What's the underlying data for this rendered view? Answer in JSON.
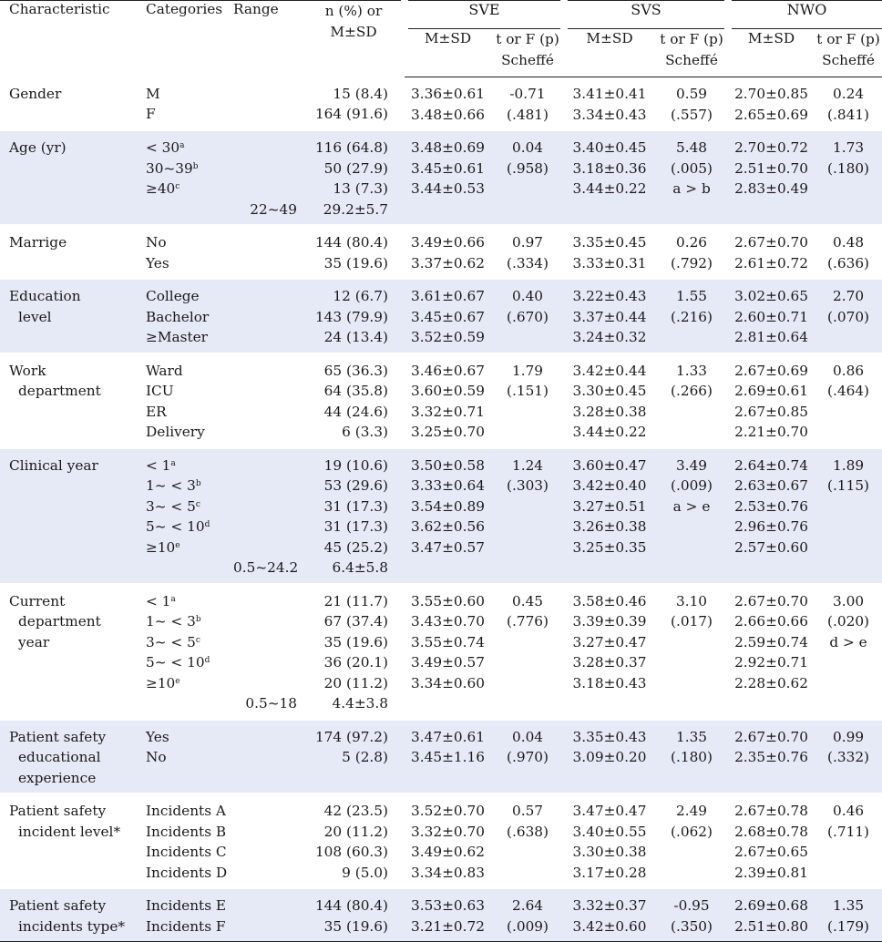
{
  "headers": {
    "characteristic": "Characteristic",
    "categories": "Categories",
    "range": "Range",
    "n_line1": "n (%) or",
    "n_line2": "M±SD",
    "groups": [
      "SVE",
      "SVS",
      "NWO"
    ],
    "ms": "M±SD",
    "t_line1": "t or F (p)",
    "t_line2": "Scheffé"
  },
  "rows": [
    {
      "characteristic": [
        "Gender"
      ],
      "categories": [
        {
          "text": "M"
        },
        {
          "text": "F"
        }
      ],
      "range": [
        "",
        ""
      ],
      "n": [
        "15 (8.4)",
        "164 (91.6)"
      ],
      "sve_ms": [
        "3.36±0.61",
        "3.48±0.66"
      ],
      "sve_t": [
        "-0.71",
        "(.481)"
      ],
      "svs_ms": [
        "3.41±0.41",
        "3.34±0.43"
      ],
      "svs_t": [
        "0.59",
        "(.557)"
      ],
      "nwo_ms": [
        "2.70±0.85",
        "2.65±0.69"
      ],
      "nwo_t": [
        "0.24",
        "(.841)"
      ]
    },
    {
      "characteristic": [
        "Age (yr)"
      ],
      "categories": [
        {
          "text": "< 30",
          "sup": "a"
        },
        {
          "text": "30~39",
          "sup": "b"
        },
        {
          "text": "≥40",
          "sup": "c"
        },
        {
          "text": ""
        }
      ],
      "range": [
        "",
        "",
        "",
        "22~49"
      ],
      "n": [
        "116 (64.8)",
        "50 (27.9)",
        "13 (7.3)",
        "29.2±5.7"
      ],
      "sve_ms": [
        "3.48±0.69",
        "3.45±0.61",
        "3.44±0.53"
      ],
      "sve_t": [
        "0.04",
        "(.958)"
      ],
      "svs_ms": [
        "3.40±0.45",
        "3.18±0.36",
        "3.44±0.22"
      ],
      "svs_t": [
        "5.48",
        "(.005)",
        "a > b"
      ],
      "nwo_ms": [
        "2.70±0.72",
        "2.51±0.70",
        "2.83±0.49"
      ],
      "nwo_t": [
        "1.73",
        "(.180)"
      ]
    },
    {
      "characteristic": [
        "Marrige"
      ],
      "categories": [
        {
          "text": "No"
        },
        {
          "text": "Yes"
        }
      ],
      "range": [
        "",
        ""
      ],
      "n": [
        "144 (80.4)",
        "35 (19.6)"
      ],
      "sve_ms": [
        "3.49±0.66",
        "3.37±0.62"
      ],
      "sve_t": [
        "0.97",
        "(.334)"
      ],
      "svs_ms": [
        "3.35±0.45",
        "3.33±0.31"
      ],
      "svs_t": [
        "0.26",
        "(.792)"
      ],
      "nwo_ms": [
        "2.67±0.70",
        "2.61±0.72"
      ],
      "nwo_t": [
        "0.48",
        "(.636)"
      ]
    },
    {
      "characteristic": [
        "Education",
        "level"
      ],
      "categories": [
        {
          "text": "College"
        },
        {
          "text": "Bachelor"
        },
        {
          "text": "≥Master"
        }
      ],
      "range": [
        "",
        "",
        ""
      ],
      "n": [
        "12 (6.7)",
        "143 (79.9)",
        "24 (13.4)"
      ],
      "sve_ms": [
        "3.61±0.67",
        "3.45±0.67",
        "3.52±0.59"
      ],
      "sve_t": [
        "0.40",
        "(.670)"
      ],
      "svs_ms": [
        "3.22±0.43",
        "3.37±0.44",
        "3.24±0.32"
      ],
      "svs_t": [
        "1.55",
        "(.216)"
      ],
      "nwo_ms": [
        "3.02±0.65",
        "2.60±0.71",
        "2.81±0.64"
      ],
      "nwo_t": [
        "2.70",
        "(.070)"
      ]
    },
    {
      "characteristic": [
        "Work",
        "department"
      ],
      "categories": [
        {
          "text": "Ward"
        },
        {
          "text": "ICU"
        },
        {
          "text": "ER"
        },
        {
          "text": "Delivery"
        }
      ],
      "range": [
        "",
        "",
        "",
        ""
      ],
      "n": [
        "65 (36.3)",
        "64 (35.8)",
        "44 (24.6)",
        "6 (3.3)"
      ],
      "sve_ms": [
        "3.46±0.67",
        "3.60±0.59",
        "3.32±0.71",
        "3.25±0.70"
      ],
      "sve_t": [
        "1.79",
        "(.151)"
      ],
      "svs_ms": [
        "3.42±0.44",
        "3.30±0.45",
        "3.28±0.38",
        "3.44±0.22"
      ],
      "svs_t": [
        "1.33",
        "(.266)"
      ],
      "nwo_ms": [
        "2.67±0.69",
        "2.69±0.61",
        "2.67±0.85",
        "2.21±0.70"
      ],
      "nwo_t": [
        "0.86",
        "(.464)"
      ]
    },
    {
      "characteristic": [
        "Clinical year"
      ],
      "categories": [
        {
          "text": "< 1",
          "sup": "a"
        },
        {
          "text": "1~ < 3",
          "sup": "b"
        },
        {
          "text": "3~ < 5",
          "sup": "c"
        },
        {
          "text": "5~ < 10",
          "sup": "d"
        },
        {
          "text": "≥10",
          "sup": "e"
        },
        {
          "text": ""
        }
      ],
      "range": [
        "",
        "",
        "",
        "",
        "",
        "0.5~24.2"
      ],
      "n": [
        "19 (10.6)",
        "53 (29.6)",
        "31 (17.3)",
        "31 (17.3)",
        "45 (25.2)",
        "6.4±5.8"
      ],
      "sve_ms": [
        "3.50±0.58",
        "3.33±0.64",
        "3.54±0.89",
        "3.62±0.56",
        "3.47±0.57"
      ],
      "sve_t": [
        "1.24",
        "(.303)"
      ],
      "svs_ms": [
        "3.60±0.47",
        "3.42±0.40",
        "3.27±0.51",
        "3.26±0.38",
        "3.25±0.35"
      ],
      "svs_t": [
        "3.49",
        "(.009)",
        "a > e"
      ],
      "nwo_ms": [
        "2.64±0.74",
        "2.63±0.67",
        "2.53±0.76",
        "2.96±0.76",
        "2.57±0.60"
      ],
      "nwo_t": [
        "1.89",
        "(.115)"
      ]
    },
    {
      "characteristic": [
        "Current",
        "department",
        "year"
      ],
      "categories": [
        {
          "text": "< 1",
          "sup": "a"
        },
        {
          "text": "1~ < 3",
          "sup": "b"
        },
        {
          "text": "3~ < 5",
          "sup": "c"
        },
        {
          "text": "5~ < 10",
          "sup": "d"
        },
        {
          "text": "≥10",
          "sup": "e"
        },
        {
          "text": ""
        }
      ],
      "range": [
        "",
        "",
        "",
        "",
        "",
        "0.5~18"
      ],
      "n": [
        "21 (11.7)",
        "67 (37.4)",
        "35 (19.6)",
        "36 (20.1)",
        "20 (11.2)",
        "4.4±3.8"
      ],
      "sve_ms": [
        "3.55±0.60",
        "3.43±0.70",
        "3.55±0.74",
        "3.49±0.57",
        "3.34±0.60"
      ],
      "sve_t": [
        "0.45",
        "(.776)"
      ],
      "svs_ms": [
        "3.58±0.46",
        "3.39±0.39",
        "3.27±0.47",
        "3.28±0.37",
        "3.18±0.43"
      ],
      "svs_t": [
        "3.10",
        "(.017)"
      ],
      "nwo_ms": [
        "2.67±0.70",
        "2.66±0.66",
        "2.59±0.74",
        "2.92±0.71",
        "2.28±0.62"
      ],
      "nwo_t": [
        "3.00",
        "(.020)",
        "d > e"
      ]
    },
    {
      "characteristic": [
        "Patient safety",
        "educational",
        "experience"
      ],
      "categories": [
        {
          "text": "Yes"
        },
        {
          "text": "No"
        }
      ],
      "range": [
        "",
        ""
      ],
      "n": [
        "174 (97.2)",
        "5 (2.8)"
      ],
      "sve_ms": [
        "3.47±0.61",
        "3.45±1.16"
      ],
      "sve_t": [
        "0.04",
        "(.970)"
      ],
      "svs_ms": [
        "3.35±0.43",
        "3.09±0.20"
      ],
      "svs_t": [
        "1.35",
        "(.180)"
      ],
      "nwo_ms": [
        "2.67±0.70",
        "2.35±0.76"
      ],
      "nwo_t": [
        "0.99",
        "(.332)"
      ]
    },
    {
      "characteristic": [
        "Patient safety",
        "incident level*"
      ],
      "categories": [
        {
          "text": "Incidents A"
        },
        {
          "text": "Incidents B"
        },
        {
          "text": "Incidents C"
        },
        {
          "text": "Incidents D"
        }
      ],
      "range": [
        "",
        "",
        "",
        ""
      ],
      "n": [
        "42 (23.5)",
        "20 (11.2)",
        "108 (60.3)",
        "9 (5.0)"
      ],
      "sve_ms": [
        "3.52±0.70",
        "3.32±0.70",
        "3.49±0.62",
        "3.34±0.83"
      ],
      "sve_t": [
        "0.57",
        "(.638)"
      ],
      "svs_ms": [
        "3.47±0.47",
        "3.40±0.55",
        "3.30±0.38",
        "3.17±0.28"
      ],
      "svs_t": [
        "2.49",
        "(.062)"
      ],
      "nwo_ms": [
        "2.67±0.78",
        "2.68±0.78",
        "2.67±0.65",
        "2.39±0.81"
      ],
      "nwo_t": [
        "0.46",
        "(.711)"
      ]
    },
    {
      "characteristic": [
        "Patient safety",
        "incidents type*"
      ],
      "categories": [
        {
          "text": "Incidents E"
        },
        {
          "text": "Incidents F"
        }
      ],
      "range": [
        "",
        ""
      ],
      "n": [
        "144 (80.4)",
        "35 (19.6)"
      ],
      "sve_ms": [
        "3.53±0.63",
        "3.21±0.72"
      ],
      "sve_t": [
        "2.64",
        "(.009)"
      ],
      "svs_ms": [
        "3.32±0.37",
        "3.42±0.60"
      ],
      "svs_t": [
        "-0.95",
        "(.350)"
      ],
      "nwo_ms": [
        "2.69±0.68",
        "2.51±0.80"
      ],
      "nwo_t": [
        "1.35",
        "(.179)"
      ]
    }
  ]
}
